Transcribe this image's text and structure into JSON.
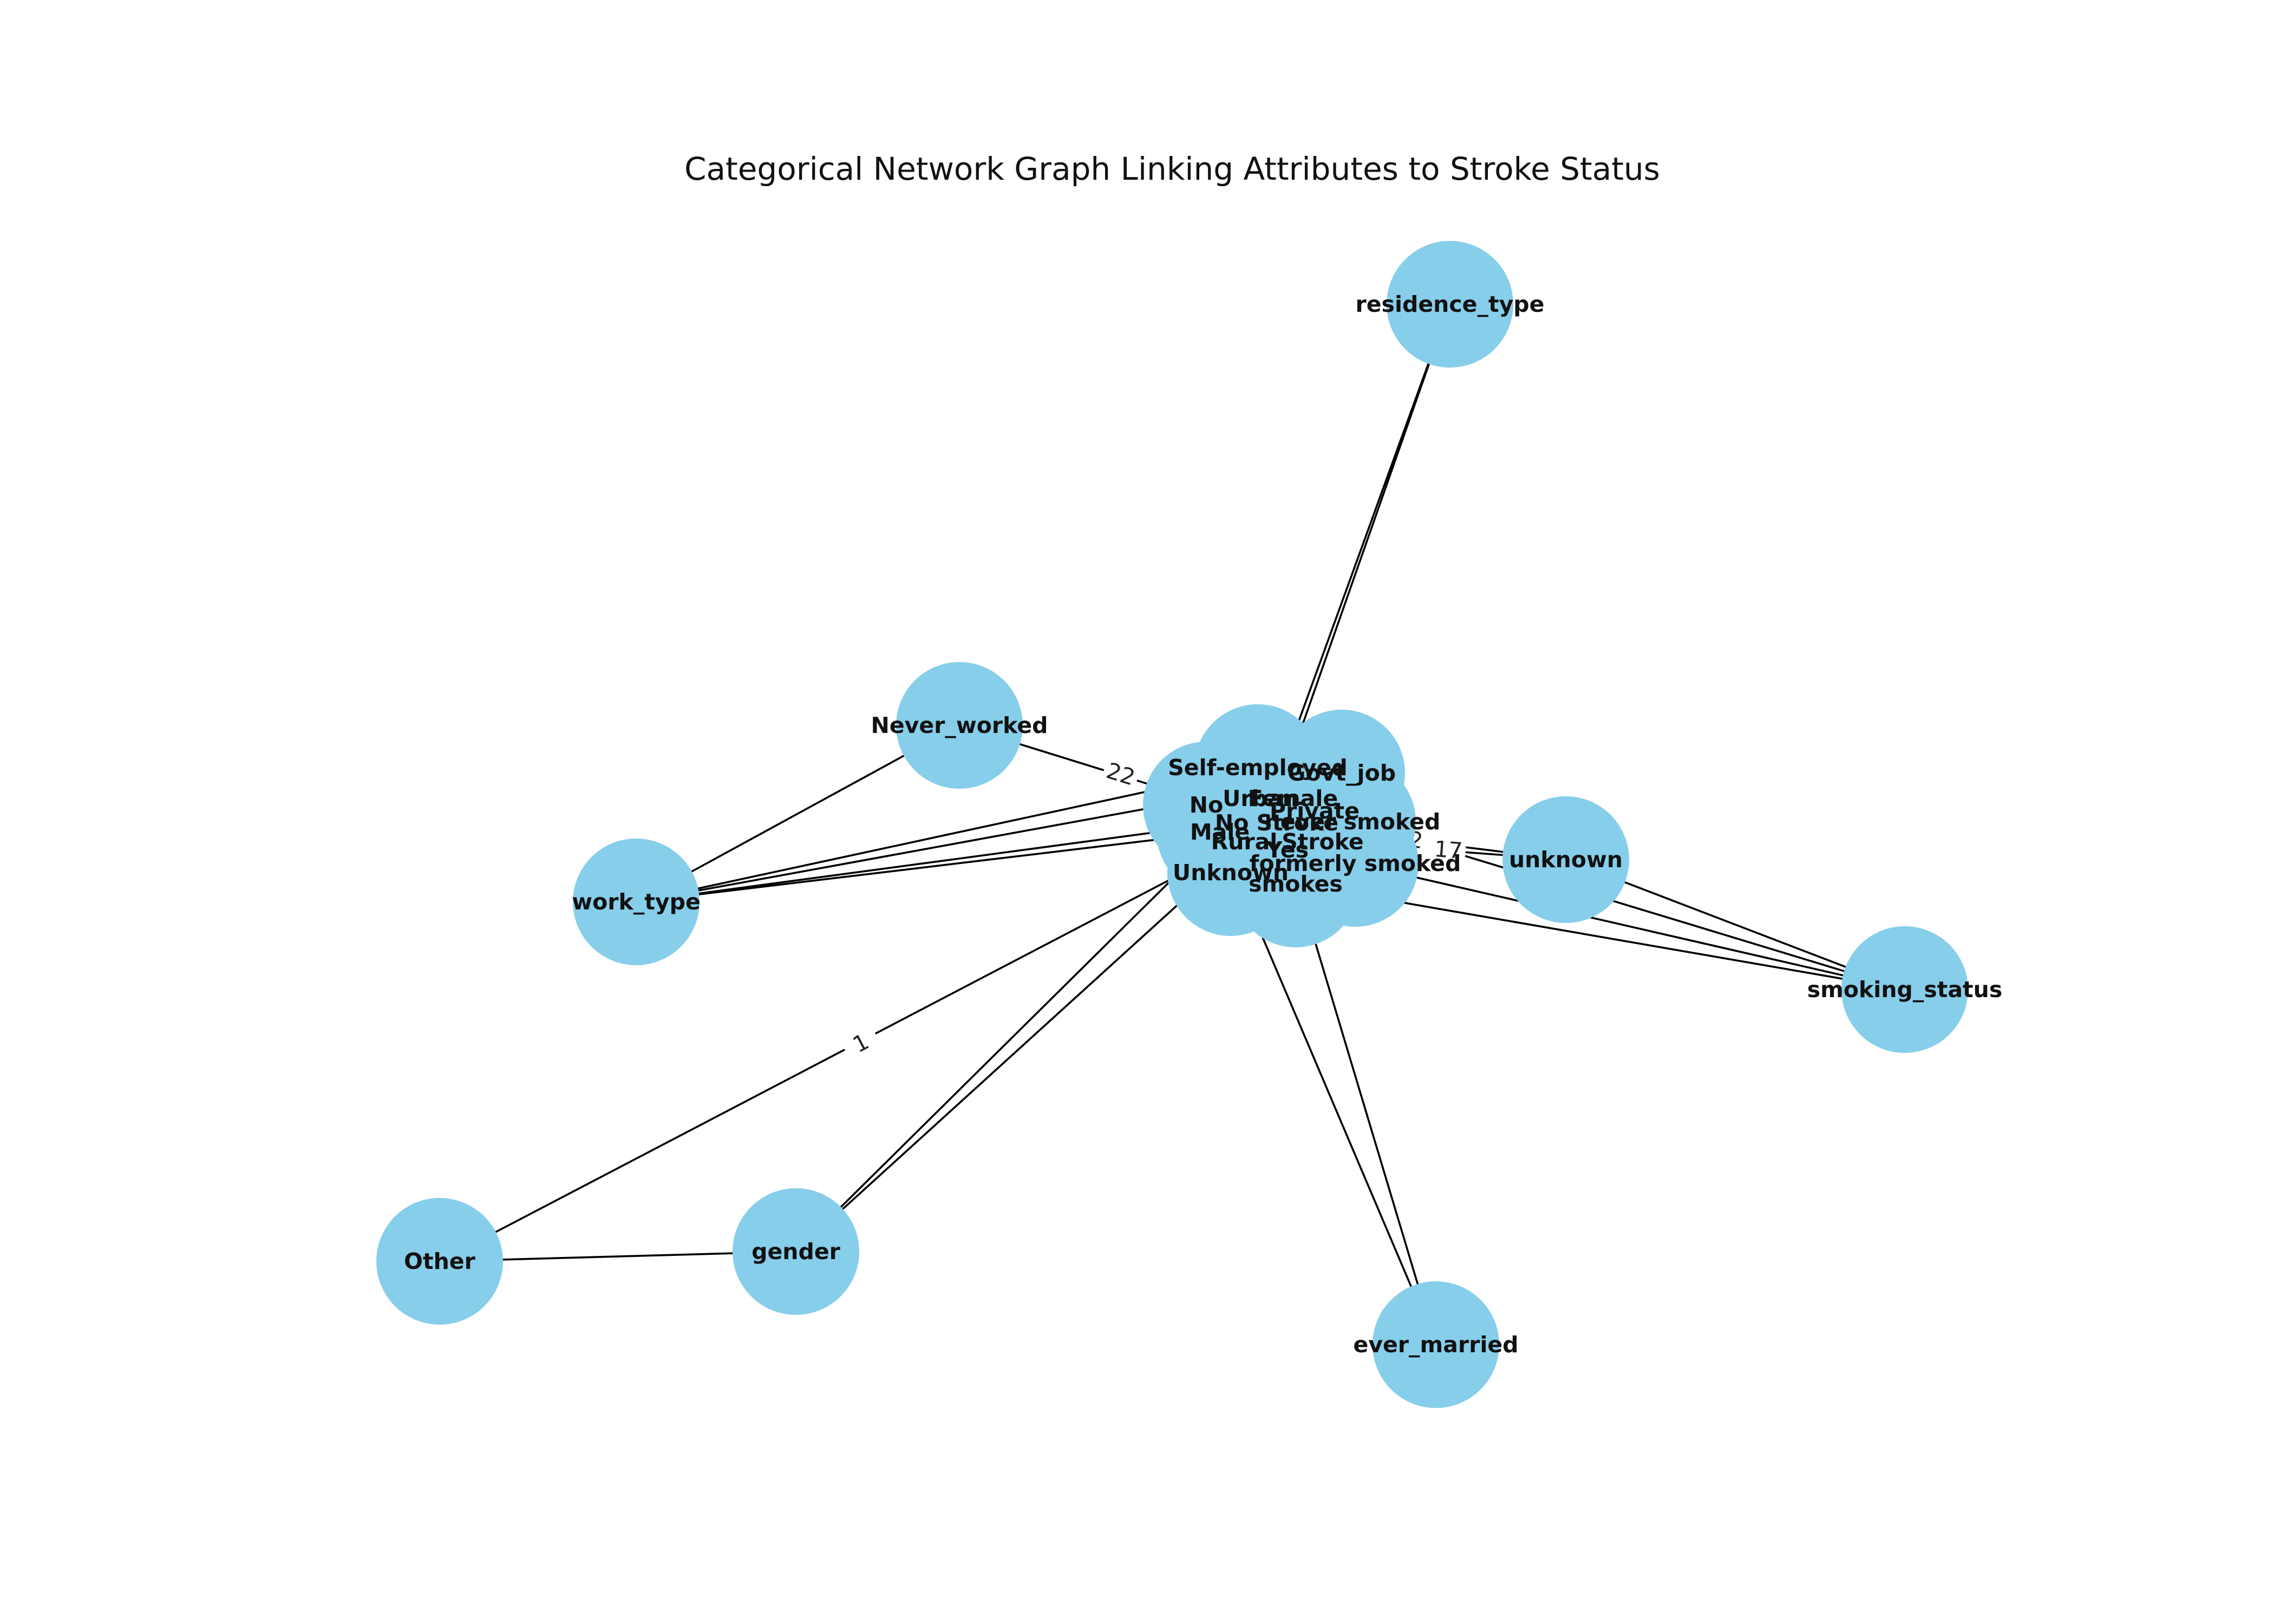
{
  "title": "Categorical Network Graph Linking Attributes to Stroke Status",
  "colors": {
    "node_fill": "#87CEEB",
    "edge": "#000000",
    "background": "#ffffff"
  },
  "graph": {
    "nodes": [
      {
        "id": "residence_type",
        "label": "residence_type"
      },
      {
        "id": "Never_worked",
        "label": "Never_worked"
      },
      {
        "id": "work_type",
        "label": "work_type"
      },
      {
        "id": "unknown",
        "label": "unknown"
      },
      {
        "id": "smoking_status",
        "label": "smoking_status"
      },
      {
        "id": "Other",
        "label": "Other"
      },
      {
        "id": "gender",
        "label": "gender"
      },
      {
        "id": "ever_married",
        "label": "ever_married"
      },
      {
        "id": "Self-employed",
        "label": "Self-employed"
      },
      {
        "id": "Govt_job",
        "label": "Govt_job"
      },
      {
        "id": "Urban",
        "label": "Urban"
      },
      {
        "id": "Female",
        "label": "Female"
      },
      {
        "id": "No",
        "label": "No"
      },
      {
        "id": "Private",
        "label": "Private"
      },
      {
        "id": "No Stroke",
        "label": "No Stroke"
      },
      {
        "id": "never smoked",
        "label": "never smoked"
      },
      {
        "id": "Male",
        "label": "Male"
      },
      {
        "id": "Rural",
        "label": "Rural"
      },
      {
        "id": "Stroke",
        "label": "Stroke"
      },
      {
        "id": "Yes",
        "label": "Yes"
      },
      {
        "id": "formerly smoked",
        "label": "formerly smoked"
      },
      {
        "id": "Unknown",
        "label": "Unknown"
      },
      {
        "id": "smokes",
        "label": "smokes"
      }
    ],
    "edges": [
      {
        "source": "residence_type",
        "target": "Urban"
      },
      {
        "source": "residence_type",
        "target": "Rural"
      },
      {
        "source": "Never_worked",
        "target": "work_type"
      },
      {
        "source": "Never_worked",
        "target": "No Stroke",
        "label": "22"
      },
      {
        "source": "work_type",
        "target": "Self-employed"
      },
      {
        "source": "work_type",
        "target": "Private"
      },
      {
        "source": "work_type",
        "target": "Govt_job"
      },
      {
        "source": "work_type",
        "target": "Male"
      },
      {
        "source": "unknown",
        "target": "smoking_status"
      },
      {
        "source": "unknown",
        "target": "No Stroke",
        "label": "2"
      },
      {
        "source": "unknown",
        "target": "Stroke",
        "label": "17"
      },
      {
        "source": "smoking_status",
        "target": "never smoked"
      },
      {
        "source": "smoking_status",
        "target": "formerly smoked"
      },
      {
        "source": "smoking_status",
        "target": "smokes"
      },
      {
        "source": "Other",
        "target": "gender"
      },
      {
        "source": "Other",
        "target": "No Stroke",
        "label": "1"
      },
      {
        "source": "gender",
        "target": "Female"
      },
      {
        "source": "gender",
        "target": "Male"
      },
      {
        "source": "ever_married",
        "target": "Yes"
      },
      {
        "source": "ever_married",
        "target": "No"
      }
    ]
  }
}
